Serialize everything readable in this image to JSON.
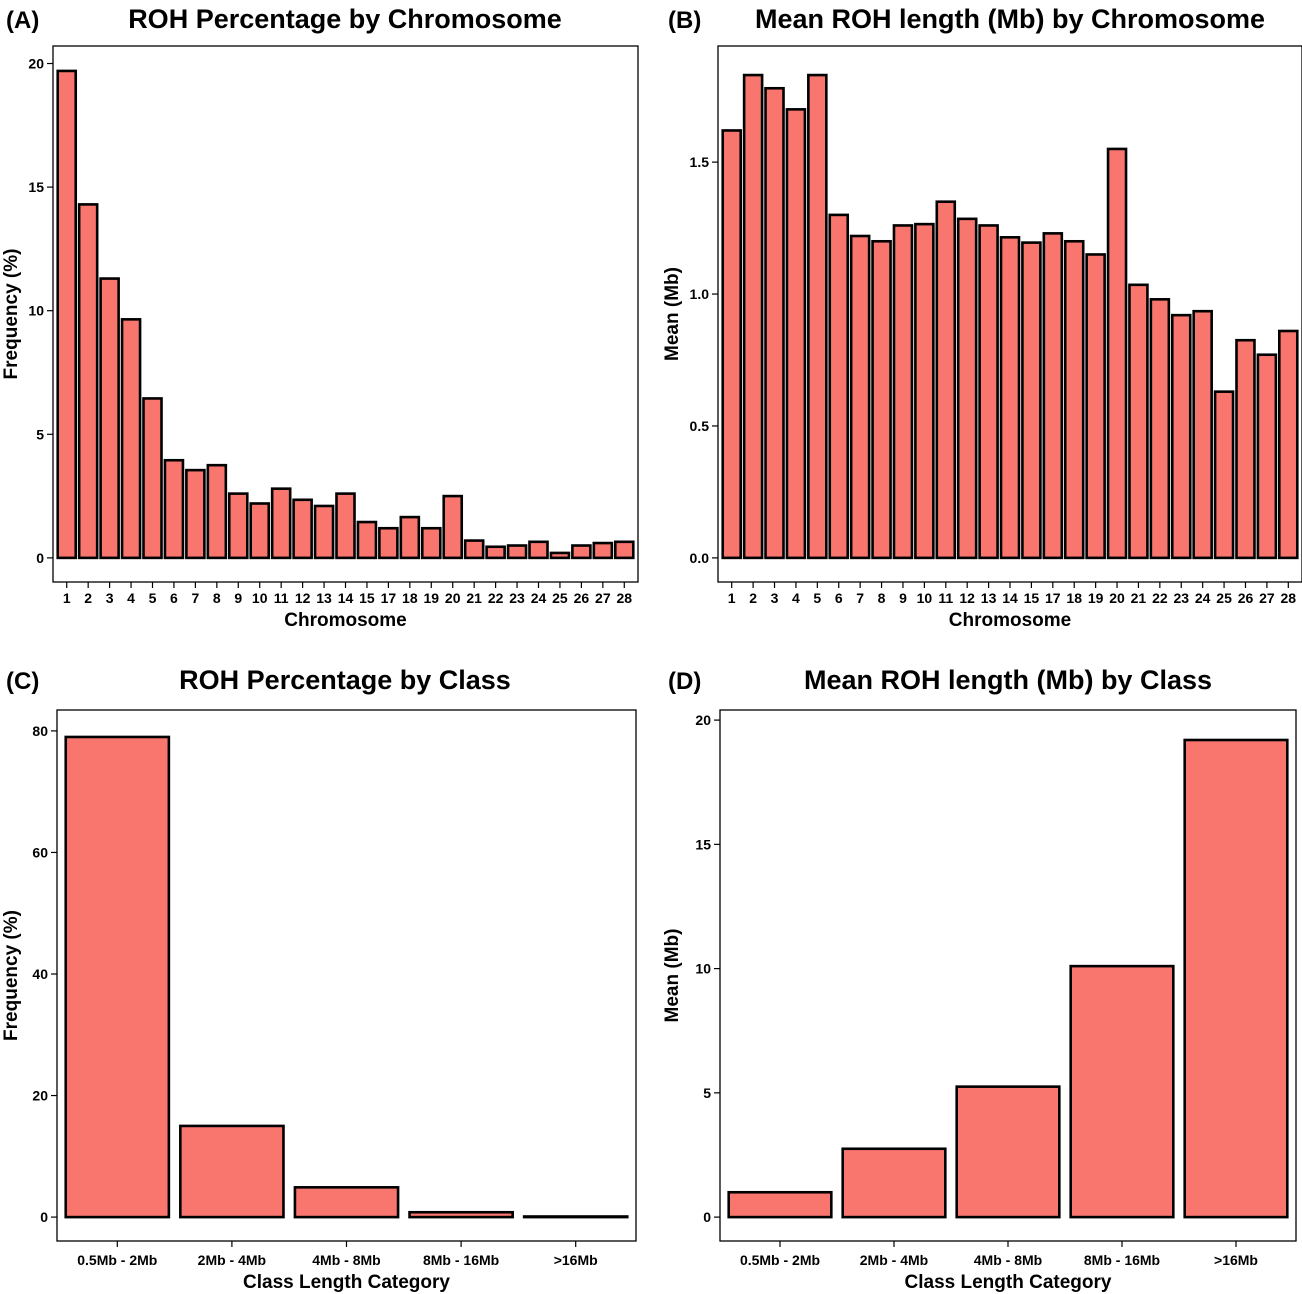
{
  "colors": {
    "bar_fill": "#F8766D",
    "bar_stroke": "#000000"
  },
  "chart_data": [
    {
      "type": "bar",
      "panel_label": "(A)",
      "title": "ROH Percentage by Chromosome",
      "xlabel": "Chromosome",
      "ylabel": "Frequency (%)",
      "ylim": [
        0,
        20.6
      ],
      "yticks": [
        0,
        5,
        10,
        15,
        20
      ],
      "categories": [
        "1",
        "2",
        "3",
        "4",
        "5",
        "6",
        "7",
        "8",
        "9",
        "10",
        "11",
        "12",
        "13",
        "14",
        "15",
        "17",
        "18",
        "19",
        "20",
        "21",
        "22",
        "23",
        "24",
        "25",
        "26",
        "27",
        "28"
      ],
      "values": [
        19.7,
        14.3,
        11.3,
        9.65,
        6.45,
        3.95,
        3.55,
        3.75,
        2.6,
        2.2,
        2.8,
        2.35,
        2.1,
        2.6,
        1.45,
        1.2,
        1.65,
        1.2,
        2.5,
        0.7,
        0.45,
        0.5,
        0.65,
        0.2,
        0.5,
        0.6,
        0.65
      ]
    },
    {
      "type": "bar",
      "panel_label": "(B)",
      "title": "Mean ROH length (Mb) by Chromosome",
      "xlabel": "Chromosome",
      "ylabel": "Mean (Mb)",
      "ylim": [
        0,
        1.93
      ],
      "yticks": [
        0.0,
        0.5,
        1.0,
        1.5
      ],
      "ytick_labels": [
        "0.0",
        "0.5",
        "1.0",
        "1.5"
      ],
      "categories": [
        "1",
        "2",
        "3",
        "4",
        "5",
        "6",
        "7",
        "8",
        "9",
        "10",
        "11",
        "12",
        "13",
        "14",
        "15",
        "17",
        "18",
        "19",
        "20",
        "21",
        "22",
        "23",
        "24",
        "25",
        "26",
        "27",
        "28"
      ],
      "values": [
        1.62,
        1.83,
        1.78,
        1.7,
        1.83,
        1.3,
        1.22,
        1.2,
        1.26,
        1.265,
        1.35,
        1.285,
        1.26,
        1.215,
        1.195,
        1.23,
        1.2,
        1.15,
        1.55,
        1.035,
        0.98,
        0.92,
        0.935,
        0.63,
        0.825,
        0.77,
        0.86
      ]
    },
    {
      "type": "bar",
      "panel_label": "(C)",
      "title": "ROH Percentage by Class",
      "xlabel": "Class Length Category",
      "ylabel": "Frequency (%)",
      "ylim": [
        0,
        83
      ],
      "yticks": [
        0,
        20,
        40,
        60,
        80
      ],
      "categories": [
        "0.5Mb - 2Mb",
        "2Mb - 4Mb",
        "4Mb - 8Mb",
        "8Mb - 16Mb",
        ">16Mb"
      ],
      "values": [
        79.0,
        15.0,
        4.9,
        0.8,
        0.1
      ]
    },
    {
      "type": "bar",
      "panel_label": "(D)",
      "title": "Mean ROH length (Mb) by Class",
      "xlabel": "Class Length Category",
      "ylabel": "Mean (Mb)",
      "ylim": [
        0,
        20.3
      ],
      "yticks": [
        0,
        5,
        10,
        15,
        20
      ],
      "categories": [
        "0.5Mb - 2Mb",
        "2Mb - 4Mb",
        "4Mb - 8Mb",
        "8Mb - 16Mb",
        ">16Mb"
      ],
      "values": [
        1.0,
        2.75,
        5.25,
        10.1,
        19.2
      ]
    }
  ]
}
